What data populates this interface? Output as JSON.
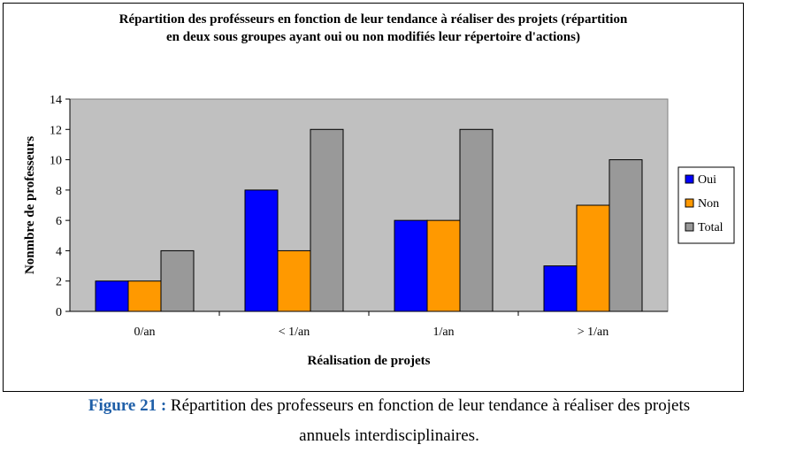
{
  "chart_data": {
    "type": "bar",
    "title_lines": [
      "Répartition des profésseurs en fonction de leur tendance à réaliser des projets (répartition",
      "en deux sous groupes ayant oui ou non modifiés leur répertoire d'actions)"
    ],
    "xlabel": "Réalisation de projets",
    "ylabel": "Nonmbre de professeurs",
    "categories": [
      "0/an",
      "< 1/an",
      "1/an",
      "> 1/an"
    ],
    "series": [
      {
        "name": "Oui",
        "values": [
          2,
          8,
          6,
          3
        ],
        "color": "#0000ff"
      },
      {
        "name": "Non",
        "values": [
          2,
          4,
          6,
          7
        ],
        "color": "#ff9900"
      },
      {
        "name": "Total",
        "values": [
          4,
          12,
          12,
          10
        ],
        "color": "#999999"
      }
    ],
    "ylim": [
      0,
      14
    ],
    "yticks": [
      0,
      2,
      4,
      6,
      8,
      10,
      12,
      14
    ],
    "plot_background": "#c0c0c0",
    "grid": false,
    "legend_position": "right"
  },
  "caption": {
    "label": "Figure 21 :",
    "text_line1": " Répartition des professeurs en fonction de leur tendance à réaliser des projets",
    "text_line2": "annuels interdisciplinaires."
  }
}
